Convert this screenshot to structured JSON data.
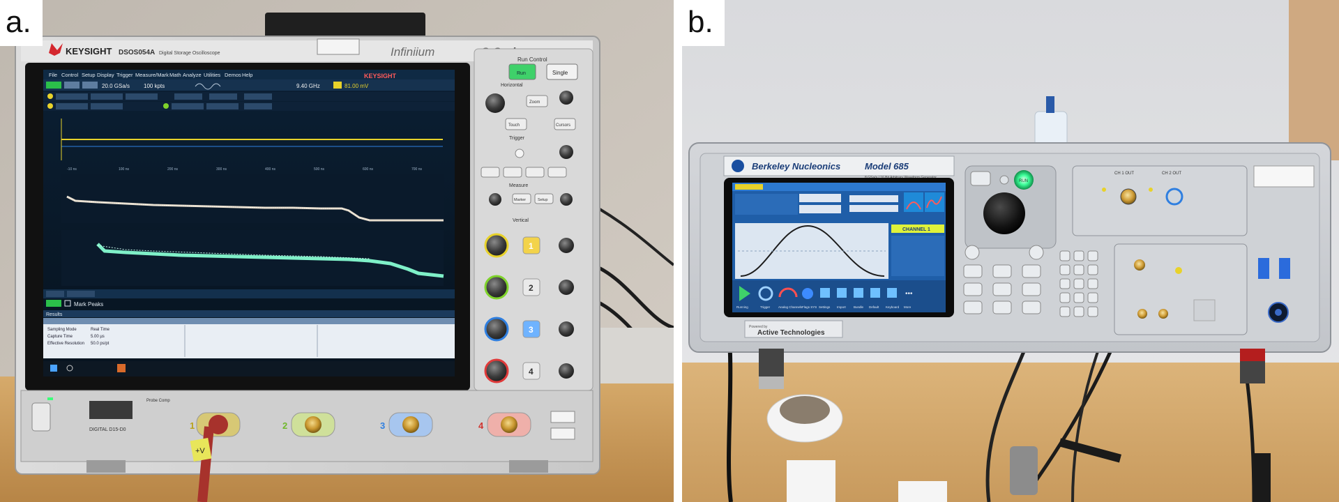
{
  "panels": [
    {
      "label": "a.",
      "brand": "KEYSIGHT",
      "model": "DSOS054A",
      "model_desc": "Digital Storage Oscilloscope",
      "series_name": "Infiniium",
      "series_suffix": "S-Series",
      "screen_brand": "KEYSIGHT",
      "menu": [
        "File",
        "Control",
        "Setup",
        "Display",
        "Trigger",
        "Measure/Mark",
        "Math",
        "Analyze",
        "Utilities",
        "Demos",
        "Help"
      ],
      "sample_rate": "20.0 GSa/s",
      "memory_depth": "100 kpts",
      "trigger_freq": "9.40 GHz",
      "trigger_level": "81.00 mV",
      "markers_button": "Mark Peaks",
      "run_control_title": "Run Control",
      "single_button": "Single",
      "run_button": "Run",
      "section_labels": [
        "Horizontal",
        "Trigger",
        "Measure",
        "Vertical"
      ],
      "knob_labels": [
        "Zoom",
        "Touch",
        "Cursors",
        "Marker",
        "Setup"
      ],
      "channel_numbers": [
        "1",
        "2",
        "3",
        "4"
      ],
      "results_title": "Results",
      "results_rows": [
        [
          "Sampling Mode",
          "Real Time"
        ],
        [
          "Capture Time",
          "5.00 µs"
        ],
        [
          "Effective Resolution",
          "50.0 ps/pt"
        ]
      ],
      "probe_label": "DIGITAL D15-D0",
      "probe_comp": "Probe Comp",
      "cable_tag": "+V"
    },
    {
      "label": "b.",
      "brand": "Berkeley Nucleonics",
      "model": "Model 685",
      "subtitle": "8 GSa/s / 16 Bit Arbitrary Waveform Generator",
      "powered_by": "Powered by",
      "partner": "Active Technologies",
      "ch1_out": "CH 1 OUT",
      "ch2_out": "CH 2 OUT",
      "channel_badge": "CHANNEL 1",
      "run_key": "RUN",
      "toolbar": [
        "Running",
        "Trigger",
        "Analog Channels",
        "Flags SYS",
        "Settings",
        "Import",
        "Bundle",
        "Default",
        "Keyboard",
        "More"
      ]
    }
  ],
  "colors": {
    "ch1": "#e8d22a",
    "ch2": "#7fd32b",
    "ch3": "#2f7fe0",
    "ch4": "#e03a3a",
    "trace_upper": "#e6dccb",
    "trace_lower": "#7ff0c8",
    "wall_a": "#c9c3bb",
    "wall_b": "#e2e3e5",
    "desk": "#c79b5e",
    "awg_run_led": "#3dff9a"
  }
}
